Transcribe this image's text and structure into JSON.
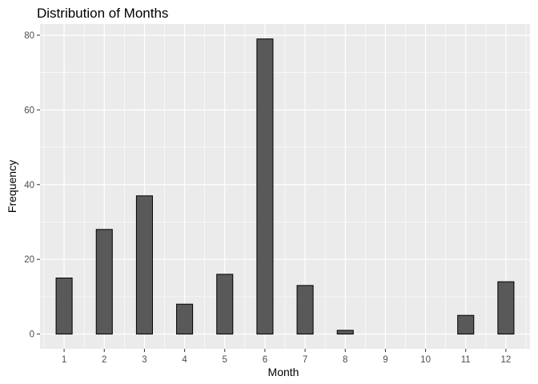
{
  "chart_data": {
    "type": "bar",
    "title": "Distribution of Months",
    "xlabel": "Month",
    "ylabel": "Frequency",
    "x_ticks": [
      "1",
      "2",
      "3",
      "4",
      "5",
      "6",
      "7",
      "8",
      "9",
      "10",
      "11",
      "12"
    ],
    "x_lim": [
      0.4,
      12.6
    ],
    "y_ticks": [
      0,
      20,
      40,
      60,
      80
    ],
    "ylim": [
      -3.95,
      83
    ],
    "bars": [
      {
        "x": 1,
        "value": 15
      },
      {
        "x": 2,
        "value": 28
      },
      {
        "x": 3,
        "value": 37
      },
      {
        "x": 4,
        "value": 8
      },
      {
        "x": 5,
        "value": 16
      },
      {
        "x": 6,
        "value": 79
      },
      {
        "x": 7,
        "value": 13
      },
      {
        "x": 8,
        "value": 1
      },
      {
        "x": 9,
        "value": 0
      },
      {
        "x": 10,
        "value": 0
      },
      {
        "x": 11,
        "value": 5
      },
      {
        "x": 12,
        "value": 14
      }
    ],
    "bar_fill": "#595959",
    "bar_stroke": "#000000",
    "panel_background": "#ebebeb",
    "grid_color": "#ffffff",
    "grid": true,
    "legend": "none"
  }
}
